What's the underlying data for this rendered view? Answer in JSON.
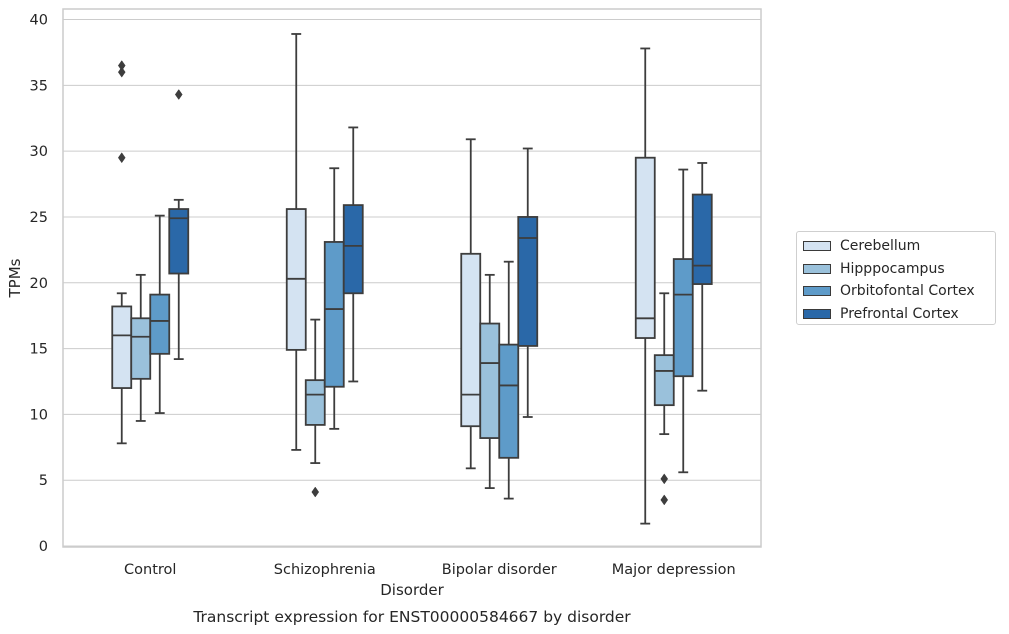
{
  "chart_data": {
    "type": "box",
    "title": "Transcript expression for ENST00000584667 by disorder",
    "xlabel": "Disorder",
    "ylabel": "TPMs",
    "ylim": [
      0,
      40
    ],
    "yticks": [
      0,
      5,
      10,
      15,
      20,
      25,
      30,
      35,
      40
    ],
    "grid": true,
    "legend_position": "right",
    "categories": [
      "Control",
      "Schizophrenia",
      "Bipolar disorder",
      "Major depression"
    ],
    "series": [
      {
        "name": "Cerebellum",
        "color": "#d4e3f2",
        "boxes": [
          {
            "whisker_low": 7.8,
            "q1": 12.0,
            "median": 16.0,
            "q3": 18.2,
            "whisker_high": 19.2,
            "outliers": [
              29.5,
              36.0,
              36.5
            ]
          },
          {
            "whisker_low": 7.3,
            "q1": 14.9,
            "median": 20.3,
            "q3": 25.6,
            "whisker_high": 38.9,
            "outliers": []
          },
          {
            "whisker_low": 5.9,
            "q1": 9.1,
            "median": 11.5,
            "q3": 22.2,
            "whisker_high": 30.9,
            "outliers": []
          },
          {
            "whisker_low": 1.7,
            "q1": 15.8,
            "median": 17.3,
            "q3": 29.5,
            "whisker_high": 37.8,
            "outliers": []
          }
        ]
      },
      {
        "name": "Hipppocampus",
        "color": "#9ac1db",
        "boxes": [
          {
            "whisker_low": 9.5,
            "q1": 12.7,
            "median": 15.9,
            "q3": 17.3,
            "whisker_high": 20.6,
            "outliers": []
          },
          {
            "whisker_low": 6.3,
            "q1": 9.2,
            "median": 11.5,
            "q3": 12.6,
            "whisker_high": 17.2,
            "outliers": [
              4.1
            ]
          },
          {
            "whisker_low": 4.4,
            "q1": 8.2,
            "median": 13.9,
            "q3": 16.9,
            "whisker_high": 20.6,
            "outliers": []
          },
          {
            "whisker_low": 8.5,
            "q1": 10.7,
            "median": 13.3,
            "q3": 14.5,
            "whisker_high": 19.2,
            "outliers": [
              5.1,
              3.5
            ]
          }
        ]
      },
      {
        "name": "Orbitofontal Cortex",
        "color": "#5e9bc9",
        "boxes": [
          {
            "whisker_low": 10.1,
            "q1": 14.6,
            "median": 17.1,
            "q3": 19.1,
            "whisker_high": 25.1,
            "outliers": []
          },
          {
            "whisker_low": 8.9,
            "q1": 12.1,
            "median": 18.0,
            "q3": 23.1,
            "whisker_high": 28.7,
            "outliers": []
          },
          {
            "whisker_low": 3.6,
            "q1": 6.7,
            "median": 12.2,
            "q3": 15.3,
            "whisker_high": 21.6,
            "outliers": []
          },
          {
            "whisker_low": 5.6,
            "q1": 12.9,
            "median": 19.1,
            "q3": 21.8,
            "whisker_high": 28.6,
            "outliers": []
          }
        ]
      },
      {
        "name": "Prefrontal Cortex",
        "color": "#2a68a8",
        "boxes": [
          {
            "whisker_low": 14.2,
            "q1": 20.7,
            "median": 24.9,
            "q3": 25.6,
            "whisker_high": 26.3,
            "outliers": [
              34.3
            ]
          },
          {
            "whisker_low": 12.5,
            "q1": 19.2,
            "median": 22.8,
            "q3": 25.9,
            "whisker_high": 31.8,
            "outliers": []
          },
          {
            "whisker_low": 9.8,
            "q1": 15.2,
            "median": 23.4,
            "q3": 25.0,
            "whisker_high": 30.2,
            "outliers": []
          },
          {
            "whisker_low": 11.8,
            "q1": 19.9,
            "median": 21.3,
            "q3": 26.7,
            "whisker_high": 29.1,
            "outliers": []
          }
        ]
      }
    ]
  }
}
